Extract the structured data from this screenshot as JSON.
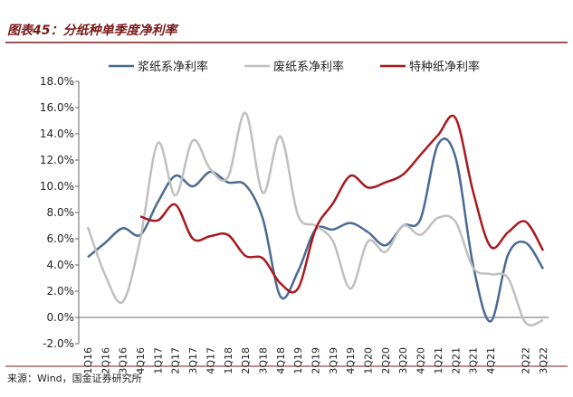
{
  "chart_data": {
    "type": "line",
    "title": "图表45：分纸种单季度净利率",
    "source": "来源：Wind，国金证券研究所",
    "categories": [
      "1Q16",
      "2Q16",
      "3Q16",
      "4Q16",
      "1Q17",
      "2Q17",
      "3Q17",
      "4Q17",
      "1Q18",
      "2Q18",
      "3Q18",
      "4Q18",
      "1Q19",
      "2Q19",
      "3Q19",
      "4Q19",
      "1Q20",
      "2Q20",
      "3Q20",
      "4Q20",
      "1Q21",
      "2Q21",
      "3Q21",
      "4Q21",
      null,
      "2Q22",
      "3Q22"
    ],
    "series": [
      {
        "name": "浆纸系净利率",
        "color": "#4a6a92",
        "values": [
          4.6,
          5.7,
          6.8,
          6.3,
          8.8,
          10.8,
          10.0,
          11.1,
          10.3,
          10.1,
          7.5,
          1.6,
          3.5,
          6.7,
          6.7,
          7.2,
          6.5,
          5.5,
          7.0,
          7.5,
          13.2,
          12.2,
          4.0,
          -0.3,
          4.8,
          5.7,
          3.7
        ]
      },
      {
        "name": "废纸系净利率",
        "color": "#bfbfbf",
        "values": [
          6.9,
          3.2,
          1.2,
          6.0,
          13.3,
          9.3,
          13.5,
          11.3,
          10.7,
          15.6,
          9.5,
          13.8,
          7.8,
          7.0,
          5.8,
          2.2,
          5.8,
          5.0,
          7.0,
          6.3,
          7.6,
          7.3,
          3.8,
          3.3,
          3.0,
          -0.4,
          -0.2
        ]
      },
      {
        "name": "特种纸净利率",
        "color": "#a8191f",
        "values": [
          null,
          null,
          null,
          7.7,
          7.4,
          8.6,
          6.0,
          6.2,
          6.3,
          4.7,
          4.5,
          2.6,
          2.2,
          6.7,
          8.7,
          10.8,
          9.9,
          10.3,
          10.9,
          12.4,
          13.9,
          15.2,
          9.6,
          5.4,
          6.5,
          7.3,
          5.1
        ]
      }
    ],
    "ylim": [
      -2,
      18
    ],
    "yticks": [
      {
        "value": -2,
        "label": "-2.0%"
      },
      {
        "value": 0,
        "label": "0.0%"
      },
      {
        "value": 2,
        "label": "2.0%"
      },
      {
        "value": 4,
        "label": "4.0%"
      },
      {
        "value": 6,
        "label": "6.0%"
      },
      {
        "value": 8,
        "label": "8.0%"
      },
      {
        "value": 10,
        "label": "10.0%"
      },
      {
        "value": 12,
        "label": "12.0%"
      },
      {
        "value": 14,
        "label": "14.0%"
      },
      {
        "value": 16,
        "label": "16.0%"
      },
      {
        "value": 18,
        "label": "18.0%"
      }
    ]
  }
}
